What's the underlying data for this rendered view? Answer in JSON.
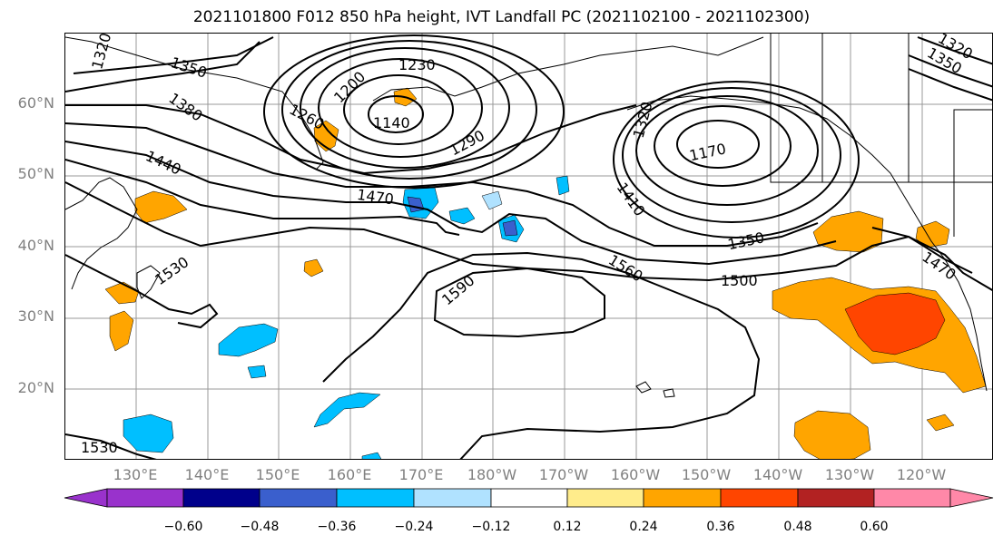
{
  "title": "2021101800 F012 850 hPa height, IVT Landfall PC (2021102100 - 2021102300)",
  "lat_labels": [
    "60°N",
    "50°N",
    "40°N",
    "30°N",
    "20°N"
  ],
  "lon_labels": [
    "130°E",
    "140°E",
    "150°E",
    "160°E",
    "170°E",
    "180°W",
    "170°W",
    "160°W",
    "150°W",
    "140°W",
    "130°W",
    "120°W"
  ],
  "contour_labels": [
    "1320",
    "1350",
    "1380",
    "1440",
    "1200",
    "1230",
    "1260",
    "1140",
    "1290",
    "1470",
    "1170",
    "1410",
    "1350",
    "1500",
    "1530",
    "1560",
    "1590",
    "1470",
    "1530",
    "1320",
    "1350",
    "1320"
  ],
  "colorbar": {
    "ticks": [
      "−0.60",
      "−0.48",
      "−0.36",
      "−0.24",
      "−0.12",
      "0.12",
      "0.24",
      "0.36",
      "0.48",
      "0.60"
    ],
    "colors": [
      "#9932cc",
      "#00008b",
      "#3a5fcd",
      "#00bfff",
      "#b0e2ff",
      "#ffffff",
      "#ffec8b",
      "#ffa500",
      "#ff4500",
      "#b22222",
      "#ff88a8"
    ]
  }
}
